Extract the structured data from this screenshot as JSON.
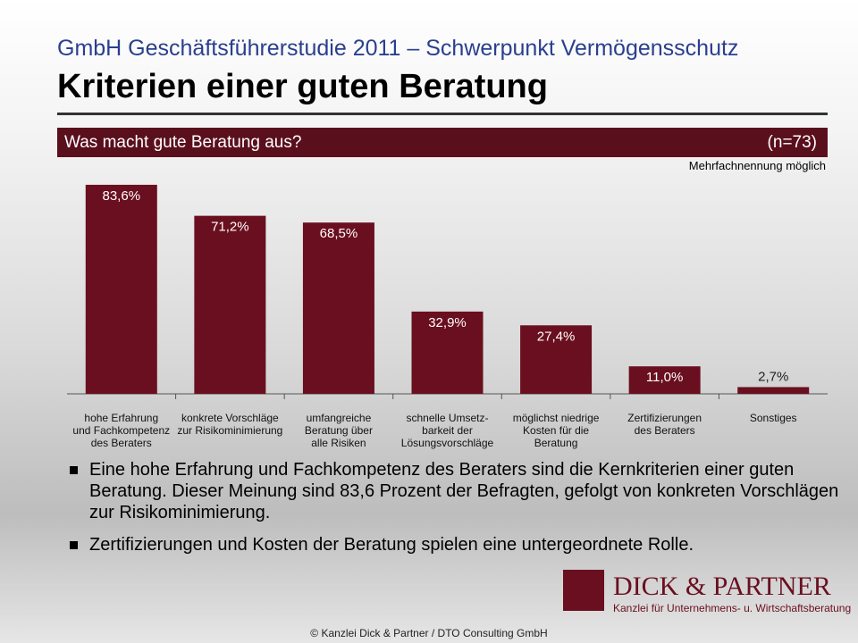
{
  "header": {
    "subtitle": "GmbH Geschäftsführerstudie 2011 – Schwerpunkt Vermögensschutz",
    "title": "Kriterien einer guten Beratung"
  },
  "chart_data": {
    "type": "bar",
    "title": "Was macht gute Beratung aus?",
    "sample": "(n=73)",
    "note": "Mehrfachnennung möglich",
    "categories": [
      [
        "hohe Erfahrung",
        "und Fachkompetenz",
        "des Beraters"
      ],
      [
        "konkrete Vorschläge",
        "zur Risikominimierung"
      ],
      [
        "umfangreiche",
        "Beratung über",
        "alle Risiken"
      ],
      [
        "schnelle Umsetz-",
        "barkeit der",
        "Lösungsvorschläge"
      ],
      [
        "möglichst niedrige",
        "Kosten für die",
        "Beratung"
      ],
      [
        "Zertifizierungen",
        "des Beraters"
      ],
      [
        "Sonstiges"
      ]
    ],
    "values": [
      83.6,
      71.2,
      68.5,
      32.9,
      27.4,
      11.0,
      2.7
    ],
    "value_labels": [
      "83,6%",
      "71,2%",
      "68,5%",
      "32,9%",
      "27,4%",
      "11,0%",
      "2,7%"
    ],
    "color": "#6a0f1f"
  },
  "bullets": [
    "Eine hohe Erfahrung und Fachkompetenz des Beraters sind die Kernkriterien einer guten Beratung. Dieser Meinung sind 83,6 Prozent der Befragten, gefolgt von konkreten Vorschlägen zur Risikominimierung.",
    "Zertifizierungen und Kosten der Beratung spielen eine untergeordnete Rolle."
  ],
  "logo": {
    "name": "DICK & PARTNER",
    "tagline": "Kanzlei für Unternehmens- u. Wirtschaftsberatung"
  },
  "footer": "© Kanzlei Dick & Partner / DTO Consulting GmbH"
}
